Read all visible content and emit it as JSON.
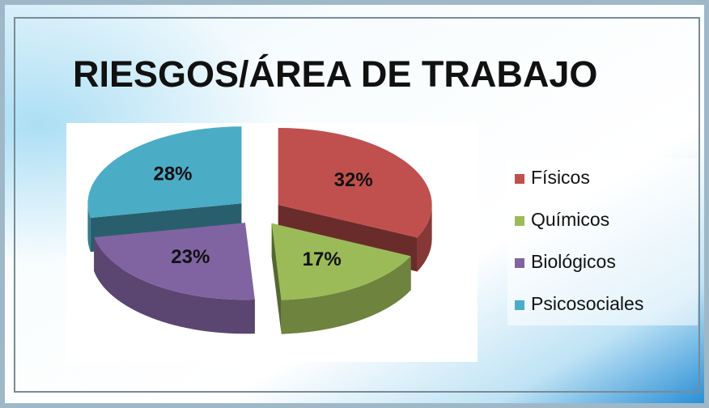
{
  "chart_data": {
    "type": "pie",
    "title": "RIESGOS/ÁREA DE TRABAJO",
    "categories": [
      "Físicos",
      "Químicos",
      "Biológicos",
      "Psicosociales"
    ],
    "values": [
      32,
      17,
      23,
      28
    ],
    "value_labels": [
      "32%",
      "17%",
      "23%",
      "28%"
    ],
    "colors": [
      "#c0504d",
      "#9bbb59",
      "#8064a2",
      "#4bacc6"
    ],
    "legend": "right"
  }
}
